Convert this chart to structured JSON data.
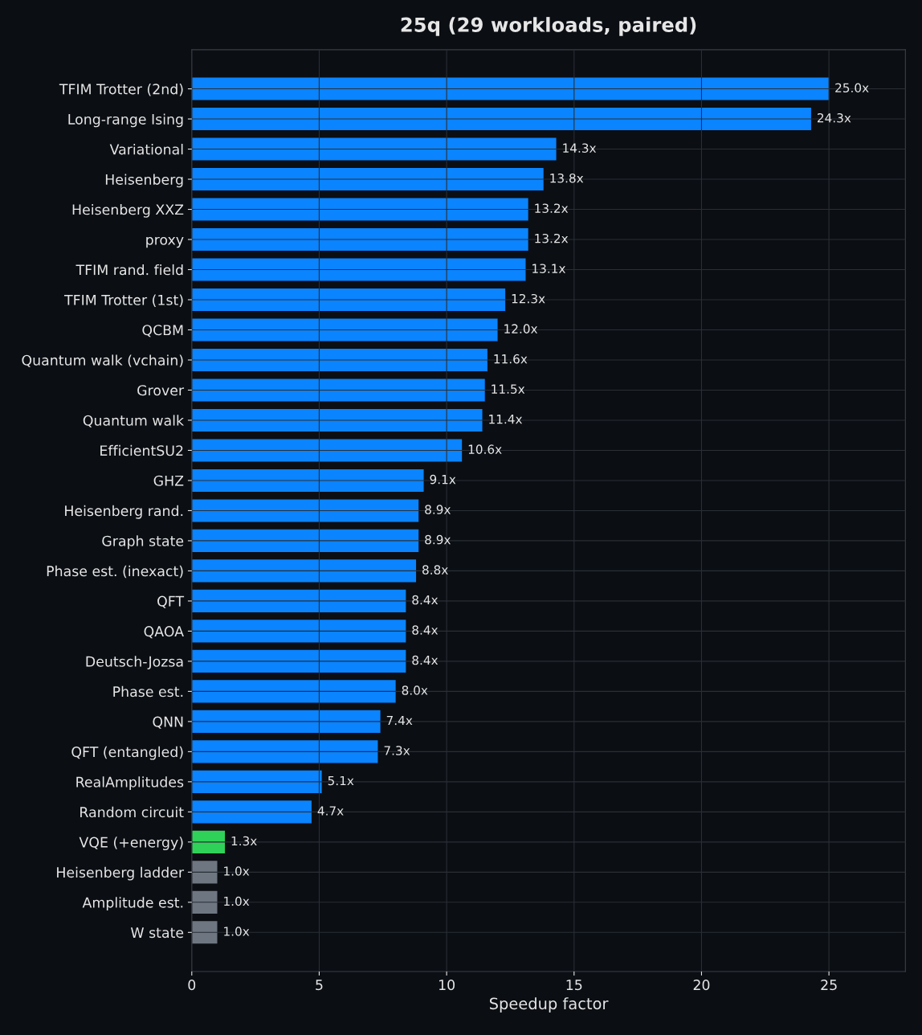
{
  "chart_data": {
    "type": "bar",
    "orientation": "horizontal",
    "title": "25q (29 workloads, paired)",
    "xlabel": "Speedup factor",
    "categories": [
      "TFIM Trotter (2nd)",
      "Long-range Ising",
      "Variational",
      "Heisenberg",
      "Heisenberg XXZ",
      "proxy",
      "TFIM rand. field",
      "TFIM Trotter (1st)",
      "QCBM",
      "Quantum walk (vchain)",
      "Grover",
      "Quantum walk",
      "EfficientSU2",
      "GHZ",
      "Heisenberg rand.",
      "Graph state",
      "Phase est. (inexact)",
      "QFT",
      "QAOA",
      "Deutsch-Jozsa",
      "Phase est.",
      "QNN",
      "QFT (entangled)",
      "RealAmplitudes",
      "Random circuit",
      "VQE (+energy)",
      "Heisenberg ladder",
      "Amplitude est.",
      "W state"
    ],
    "values": [
      25.0,
      24.3,
      14.3,
      13.8,
      13.2,
      13.2,
      13.1,
      12.3,
      12.0,
      11.6,
      11.5,
      11.4,
      10.6,
      9.1,
      8.9,
      8.9,
      8.8,
      8.4,
      8.4,
      8.4,
      8.0,
      7.4,
      7.3,
      5.1,
      4.7,
      1.3,
      1.0,
      1.0,
      1.0
    ],
    "value_labels": [
      "25.0x",
      "24.3x",
      "14.3x",
      "13.8x",
      "13.2x",
      "13.2x",
      "13.1x",
      "12.3x",
      "12.0x",
      "11.6x",
      "11.5x",
      "11.4x",
      "10.6x",
      "9.1x",
      "8.9x",
      "8.9x",
      "8.8x",
      "8.4x",
      "8.4x",
      "8.4x",
      "8.0x",
      "7.4x",
      "7.3x",
      "5.1x",
      "4.7x",
      "1.3x",
      "1.0x",
      "1.0x",
      "1.0x"
    ],
    "colors": [
      "#0a84ff",
      "#0a84ff",
      "#0a84ff",
      "#0a84ff",
      "#0a84ff",
      "#0a84ff",
      "#0a84ff",
      "#0a84ff",
      "#0a84ff",
      "#0a84ff",
      "#0a84ff",
      "#0a84ff",
      "#0a84ff",
      "#0a84ff",
      "#0a84ff",
      "#0a84ff",
      "#0a84ff",
      "#0a84ff",
      "#0a84ff",
      "#0a84ff",
      "#0a84ff",
      "#0a84ff",
      "#0a84ff",
      "#0a84ff",
      "#0a84ff",
      "#30d158",
      "#6e7681",
      "#6e7681",
      "#6e7681"
    ],
    "xlim": [
      0,
      28
    ],
    "xticks": [
      0,
      5,
      10,
      15,
      20,
      25
    ],
    "grid": true
  }
}
